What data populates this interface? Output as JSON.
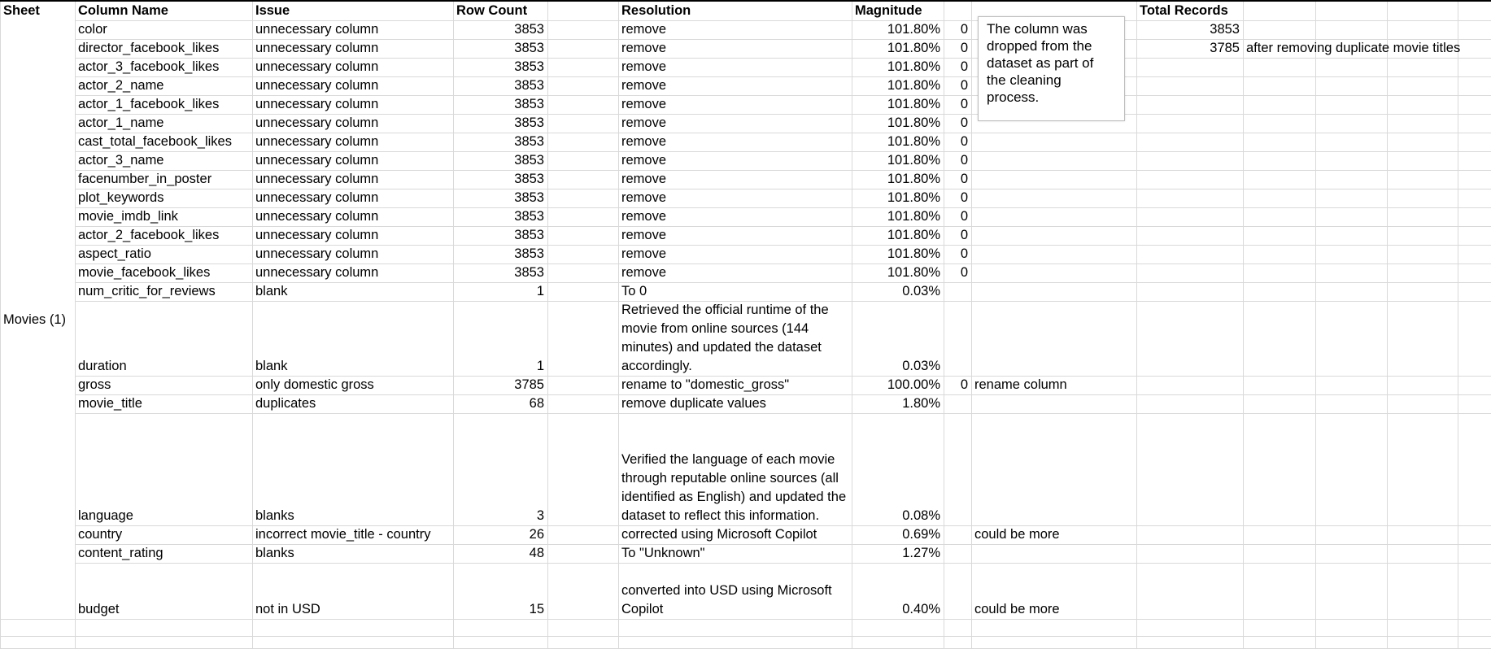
{
  "headers": {
    "sheet": "Sheet",
    "column_name": "Column Name",
    "issue": "Issue",
    "row_count": "Row Count",
    "resolution": "Resolution",
    "magnitude": "Magnitude",
    "total_records": "Total Records"
  },
  "sheet_label": "Movies (1)",
  "rows": [
    {
      "column": "color",
      "issue": "unnecessary column",
      "count": "3853",
      "resolution": "remove",
      "magnitude": "101.80%",
      "flag": "0",
      "note": ""
    },
    {
      "column": "director_facebook_likes",
      "issue": "unnecessary column",
      "count": "3853",
      "resolution": "remove",
      "magnitude": "101.80%",
      "flag": "0",
      "note": ""
    },
    {
      "column": "actor_3_facebook_likes",
      "issue": "unnecessary column",
      "count": "3853",
      "resolution": "remove",
      "magnitude": "101.80%",
      "flag": "0",
      "note": ""
    },
    {
      "column": "actor_2_name",
      "issue": "unnecessary column",
      "count": "3853",
      "resolution": "remove",
      "magnitude": "101.80%",
      "flag": "0",
      "note": ""
    },
    {
      "column": "actor_1_facebook_likes",
      "issue": "unnecessary column",
      "count": "3853",
      "resolution": "remove",
      "magnitude": "101.80%",
      "flag": "0",
      "note": ""
    },
    {
      "column": "actor_1_name",
      "issue": "unnecessary column",
      "count": "3853",
      "resolution": "remove",
      "magnitude": "101.80%",
      "flag": "0",
      "note": ""
    },
    {
      "column": "cast_total_facebook_likes",
      "issue": "unnecessary column",
      "count": "3853",
      "resolution": "remove",
      "magnitude": "101.80%",
      "flag": "0",
      "note": ""
    },
    {
      "column": "actor_3_name",
      "issue": "unnecessary column",
      "count": "3853",
      "resolution": "remove",
      "magnitude": "101.80%",
      "flag": "0",
      "note": ""
    },
    {
      "column": "facenumber_in_poster",
      "issue": "unnecessary column",
      "count": "3853",
      "resolution": "remove",
      "magnitude": "101.80%",
      "flag": "0",
      "note": ""
    },
    {
      "column": "plot_keywords",
      "issue": "unnecessary column",
      "count": "3853",
      "resolution": "remove",
      "magnitude": "101.80%",
      "flag": "0",
      "note": ""
    },
    {
      "column": "movie_imdb_link",
      "issue": "unnecessary column",
      "count": "3853",
      "resolution": "remove",
      "magnitude": "101.80%",
      "flag": "0",
      "note": ""
    },
    {
      "column": "actor_2_facebook_likes",
      "issue": "unnecessary column",
      "count": "3853",
      "resolution": "remove",
      "magnitude": "101.80%",
      "flag": "0",
      "note": ""
    },
    {
      "column": "aspect_ratio",
      "issue": "unnecessary column",
      "count": "3853",
      "resolution": "remove",
      "magnitude": "101.80%",
      "flag": "0",
      "note": ""
    },
    {
      "column": "movie_facebook_likes",
      "issue": "unnecessary column",
      "count": "3853",
      "resolution": "remove",
      "magnitude": "101.80%",
      "flag": "0",
      "note": ""
    },
    {
      "column": "num_critic_for_reviews",
      "issue": "blank",
      "count": "1",
      "resolution": "To 0",
      "magnitude": "0.03%",
      "flag": "",
      "note": ""
    },
    {
      "column": "duration",
      "issue": "blank",
      "count": "1",
      "resolution": "Retrieved the official runtime of the movie from online sources (144 minutes) and updated the dataset accordingly.",
      "magnitude": "0.03%",
      "flag": "",
      "note": ""
    },
    {
      "column": "gross",
      "issue": "only domestic gross",
      "count": "3785",
      "resolution": "rename to \"domestic_gross\"",
      "magnitude": "100.00%",
      "flag": "0",
      "note": "rename column"
    },
    {
      "column": "movie_title",
      "issue": "duplicates",
      "count": "68",
      "resolution": "remove duplicate values",
      "magnitude": "1.80%",
      "flag": "",
      "note": ""
    },
    {
      "column": "language",
      "issue": "blanks",
      "count": "3",
      "resolution": "Verified the language of each movie through reputable online sources (all identified as English) and updated the dataset to reflect this information.",
      "magnitude": "0.08%",
      "flag": "",
      "note": ""
    },
    {
      "column": "country",
      "issue": "incorrect movie_title - country",
      "count": "26",
      "resolution": "corrected using Microsoft Copilot",
      "magnitude": "0.69%",
      "flag": "",
      "note": "could be more"
    },
    {
      "column": "content_rating",
      "issue": "blanks",
      "count": "48",
      "resolution": "To \"Unknown\"",
      "magnitude": "1.27%",
      "flag": "",
      "note": ""
    },
    {
      "column": "budget",
      "issue": "not in USD",
      "count": "15",
      "resolution": "converted into USD using Microsoft Copilot",
      "magnitude": "0.40%",
      "flag": "",
      "note": "could be more"
    }
  ],
  "comment": "The column was dropped from the dataset as part of the cleaning process.",
  "totals": [
    {
      "value": "3853",
      "note": ""
    },
    {
      "value": "3785",
      "note": "after removing duplicate movie titles"
    }
  ]
}
